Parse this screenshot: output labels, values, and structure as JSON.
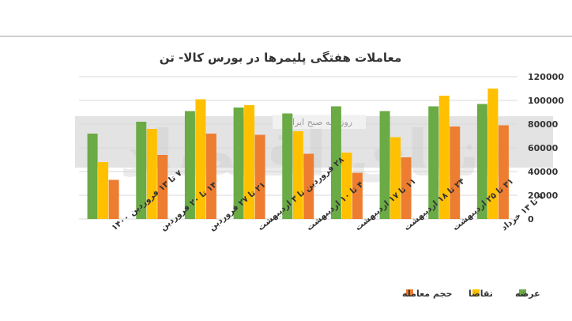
{
  "chart_data": {
    "type": "bar",
    "title": "معاملات هفتگی پلیمرها در بورس کالا- تن",
    "categories": [
      "۷ تا ۱۳ خرداد",
      "۳۱ تا ۲۵ اردیبهشت",
      "۲۴ تا ۱۸ اردیبهشت",
      "۱۱ تا ۱۷ اردیبهشت",
      "۴ تا ۱۰ اردیبهشت",
      "۲۸ فروردین تا ۳ اردیبهشت",
      "۲۱ تا ۲۷ فروردین",
      "۱۴ تا ۲۰ فروردین",
      "۷ تا ۱۳ فروردین ۱۴۰۰"
    ],
    "series": [
      {
        "name": "عرضه",
        "color": "#6aab46",
        "values": [
          97000,
          95000,
          91000,
          95000,
          89000,
          94000,
          91000,
          82000,
          72000
        ]
      },
      {
        "name": "تقاضا",
        "color": "#ffc000",
        "values": [
          110000,
          104000,
          69000,
          56000,
          74000,
          96000,
          101000,
          76000,
          48000
        ]
      },
      {
        "name": "حجم معامله",
        "color": "#ed7d31",
        "values": [
          79000,
          78000,
          52000,
          39000,
          55000,
          71000,
          72000,
          54000,
          33000
        ]
      }
    ],
    "ylim": [
      0,
      120000
    ],
    "yticks": [
      0,
      20000,
      40000,
      60000,
      80000,
      100000,
      120000
    ],
    "ytick_labels": [
      "0",
      "20000",
      "40000",
      "60000",
      "80000",
      "100000",
      "120000"
    ],
    "ylabel": "",
    "xlabel": "",
    "grid": true,
    "legend_position": "bottom-right"
  },
  "watermark": {
    "text": "دنیای اقتصاد",
    "subtext": "روزنامه صبح ایران"
  }
}
